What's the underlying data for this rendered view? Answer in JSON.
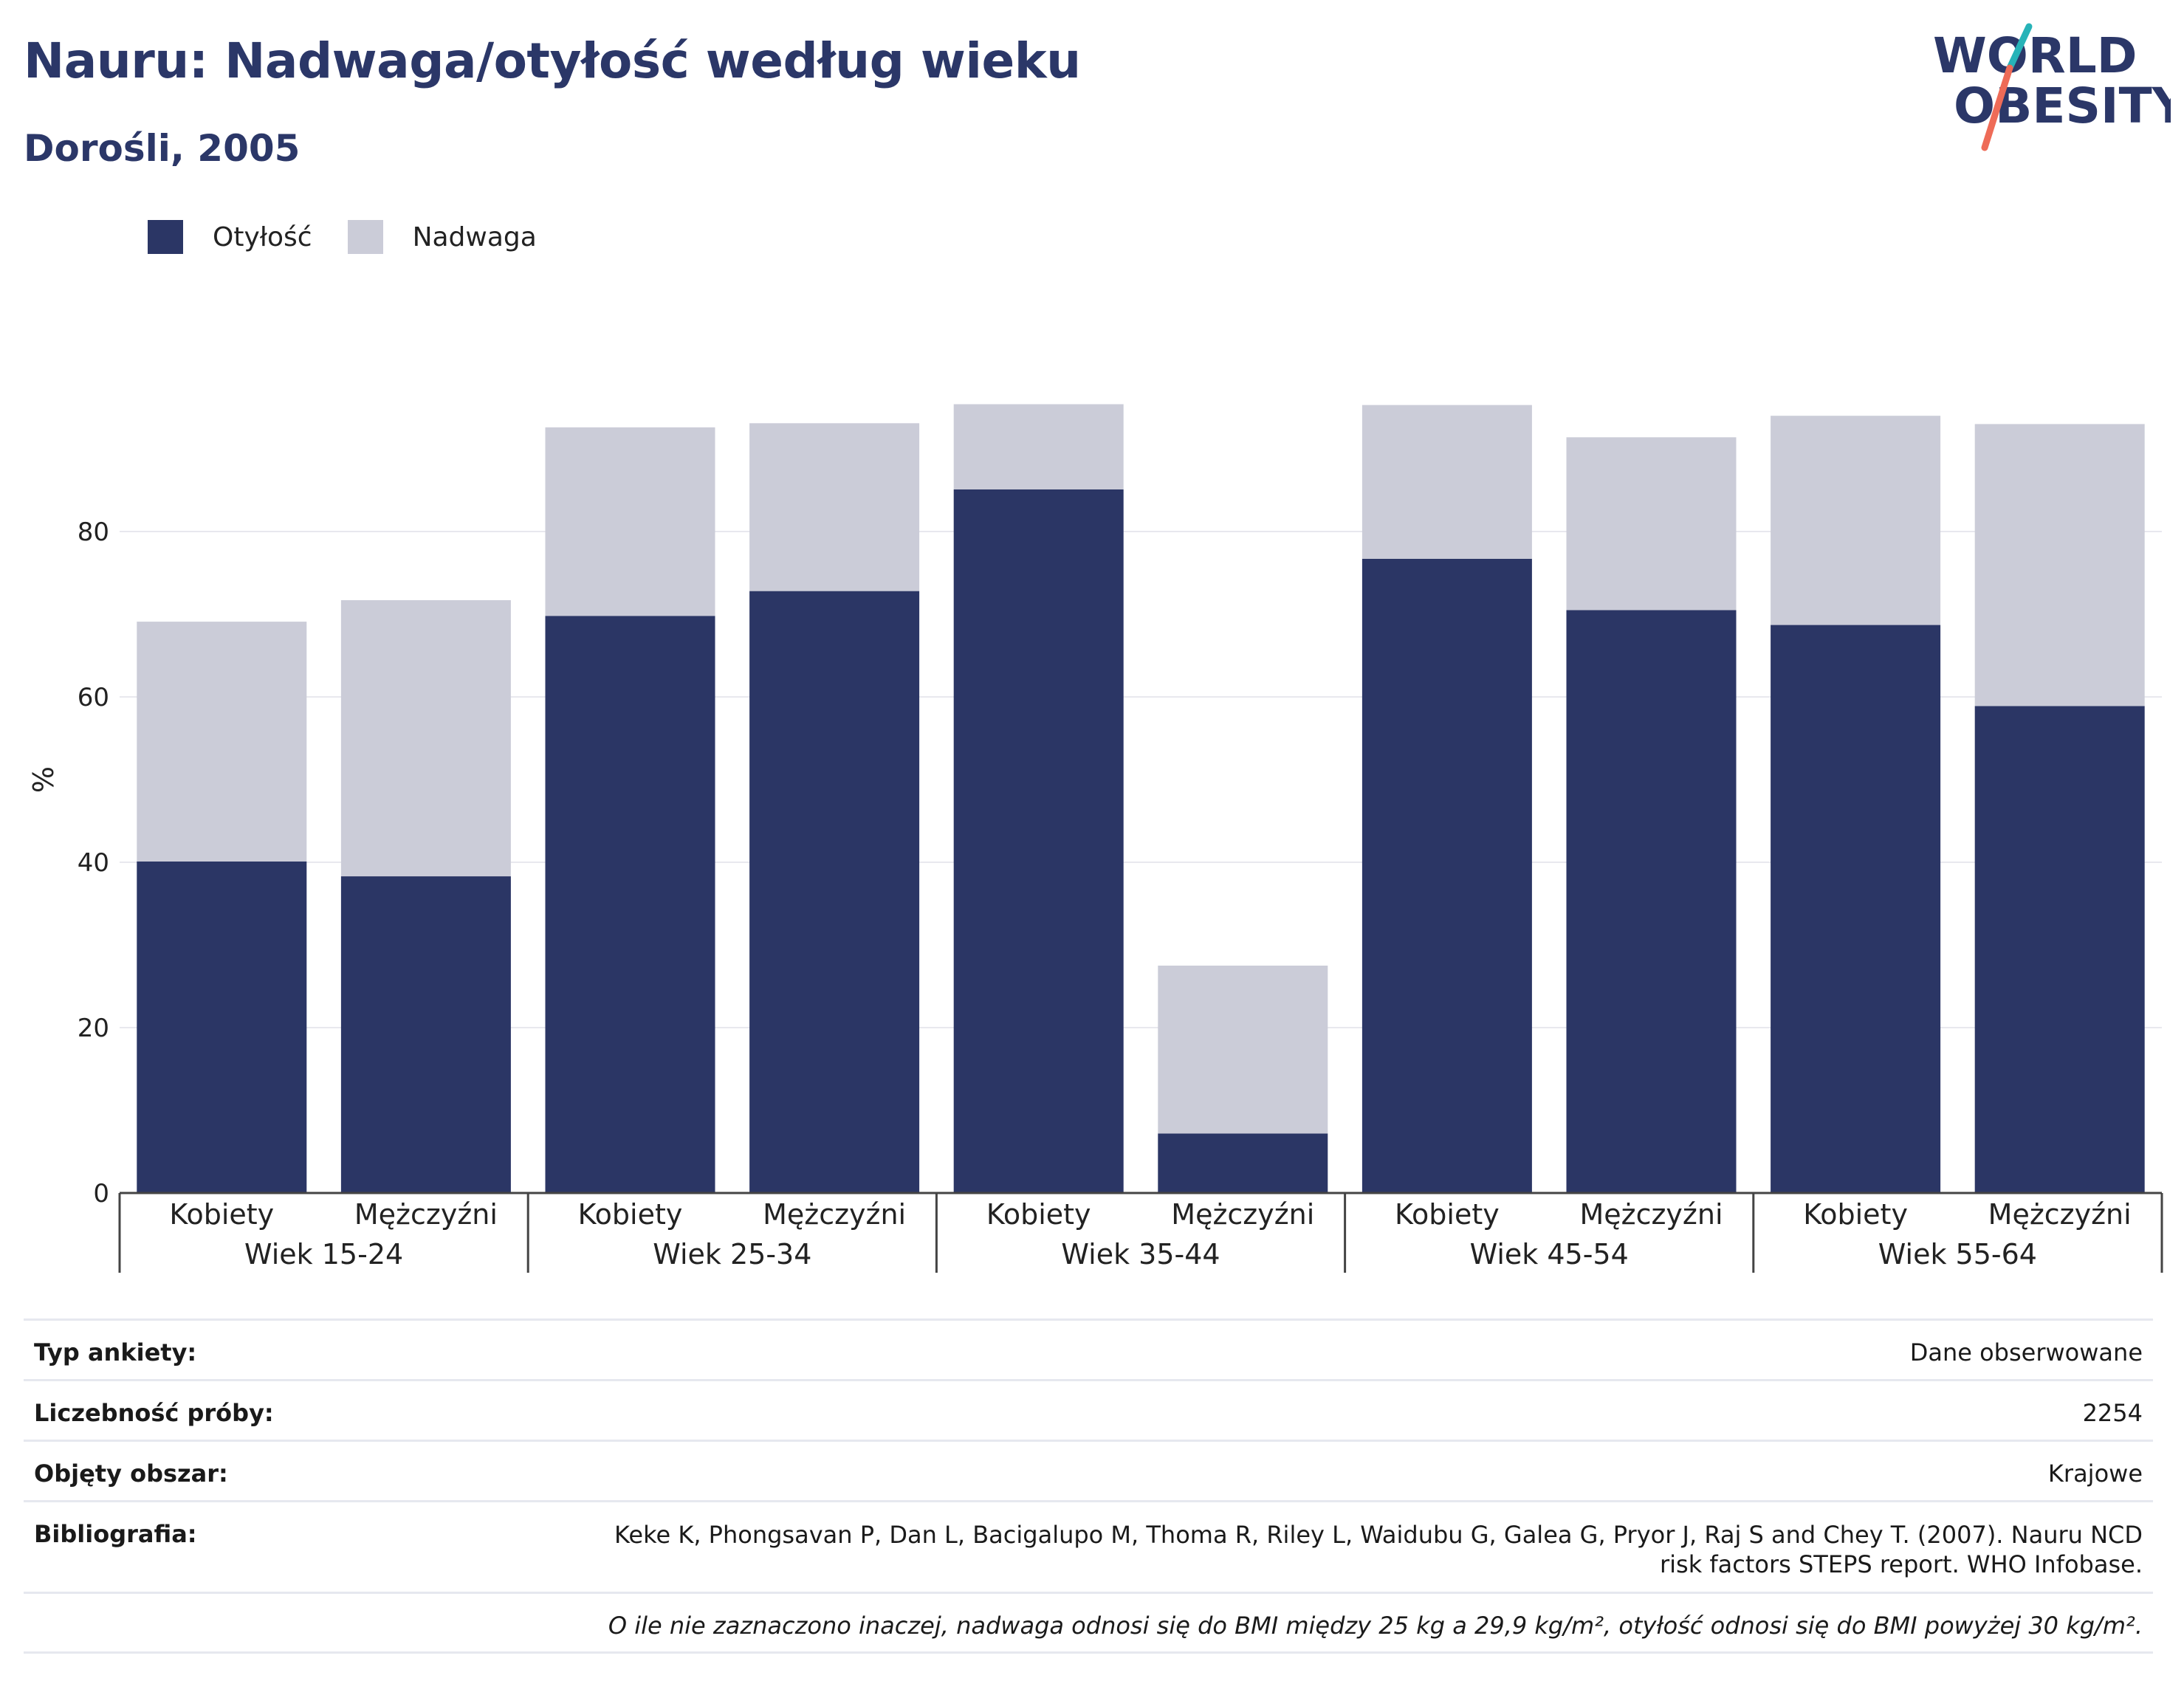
{
  "header": {
    "title": "Nauru: Nadwaga/otyłość według wieku",
    "subtitle": "Dorośli, 2005"
  },
  "logo": {
    "line1": "WORLD",
    "line2": "OBESITY",
    "colors": {
      "text": "#2b3768",
      "slash_teal": "#27b3b8",
      "slash_coral": "#ee6b57"
    }
  },
  "legend": {
    "items": [
      {
        "label": "Otyłość",
        "color": "#2b3665"
      },
      {
        "label": "Nadwaga",
        "color": "#cbccd8"
      }
    ]
  },
  "chart_data": {
    "type": "bar",
    "stacked": true,
    "ylabel": "%",
    "ylim": [
      0,
      100
    ],
    "yticks": [
      0,
      20,
      40,
      60,
      80
    ],
    "grid": true,
    "legend_position": "top-left",
    "groups": [
      "Wiek 15-24",
      "Wiek 25-34",
      "Wiek 35-44",
      "Wiek 45-54",
      "Wiek 55-64"
    ],
    "subcategories": [
      "Kobiety",
      "Mężczyźni"
    ],
    "series": [
      {
        "name": "Otyłość",
        "color": "#2b3665",
        "values": [
          40.1,
          38.3,
          69.8,
          72.8,
          85.1,
          7.2,
          76.7,
          70.5,
          68.7,
          58.9
        ]
      },
      {
        "name": "Nadwaga",
        "color": "#cbccd8",
        "values": [
          29.0,
          33.4,
          22.8,
          20.3,
          10.3,
          20.3,
          18.6,
          20.9,
          25.3,
          34.1
        ]
      }
    ]
  },
  "meta": {
    "rows": [
      {
        "key": "Typ ankiety:",
        "value": "Dane obserwowane"
      },
      {
        "key": "Liczebność próby:",
        "value": "2254"
      },
      {
        "key": "Objęty obszar:",
        "value": "Krajowe"
      },
      {
        "key": "Bibliografia:",
        "value": "Keke K, Phongsavan P, Dan L, Bacigalupo M, Thoma R, Riley L, Waidubu G, Galea G, Pryor J, Raj S and Chey T. (2007). Nauru NCD risk factors STEPS report. WHO Infobase."
      }
    ],
    "note": "O ile nie zaznaczono inaczej, nadwaga odnosi się do BMI między 25 kg a 29,9 kg/m², otyłość odnosi się do BMI powyżej 30 kg/m²."
  }
}
